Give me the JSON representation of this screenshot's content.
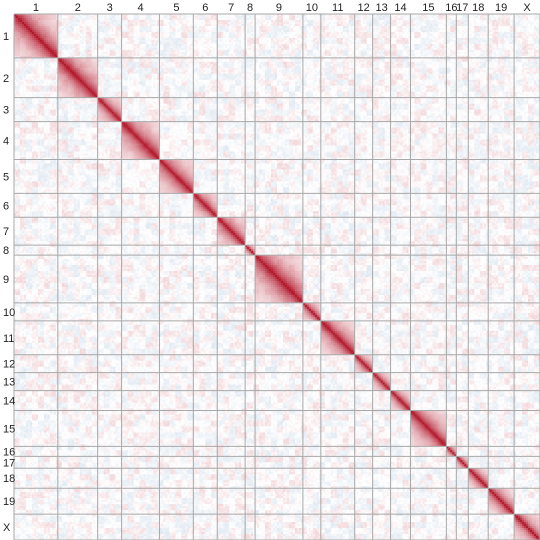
{
  "chart_data": {
    "type": "heatmap",
    "title": "",
    "xlabel": "",
    "ylabel": "",
    "chromosomes": [
      {
        "label": "1",
        "span": 22
      },
      {
        "label": "2",
        "span": 20
      },
      {
        "label": "3",
        "span": 12
      },
      {
        "label": "4",
        "span": 19
      },
      {
        "label": "5",
        "span": 17
      },
      {
        "label": "6",
        "span": 12
      },
      {
        "label": "7",
        "span": 14
      },
      {
        "label": "8",
        "span": 5
      },
      {
        "label": "9",
        "span": 24
      },
      {
        "label": "10",
        "span": 9
      },
      {
        "label": "11",
        "span": 17
      },
      {
        "label": "12",
        "span": 9
      },
      {
        "label": "13",
        "span": 9
      },
      {
        "label": "14",
        "span": 10
      },
      {
        "label": "15",
        "span": 18
      },
      {
        "label": "16",
        "span": 5
      },
      {
        "label": "17",
        "span": 6
      },
      {
        "label": "18",
        "span": 10
      },
      {
        "label": "19",
        "span": 13
      },
      {
        "label": "X",
        "span": 13
      }
    ],
    "value_range": [
      -1,
      1
    ],
    "diagonal_value": 1,
    "within_block_max": 0.9,
    "off_block_noise": 0.18,
    "colors": {
      "positive": "#B2182B",
      "neutral": "#FFFFFF",
      "negative": "#4F7FB0",
      "boundary_line": "#A8A8A8"
    },
    "grid": true,
    "legend": "none"
  }
}
